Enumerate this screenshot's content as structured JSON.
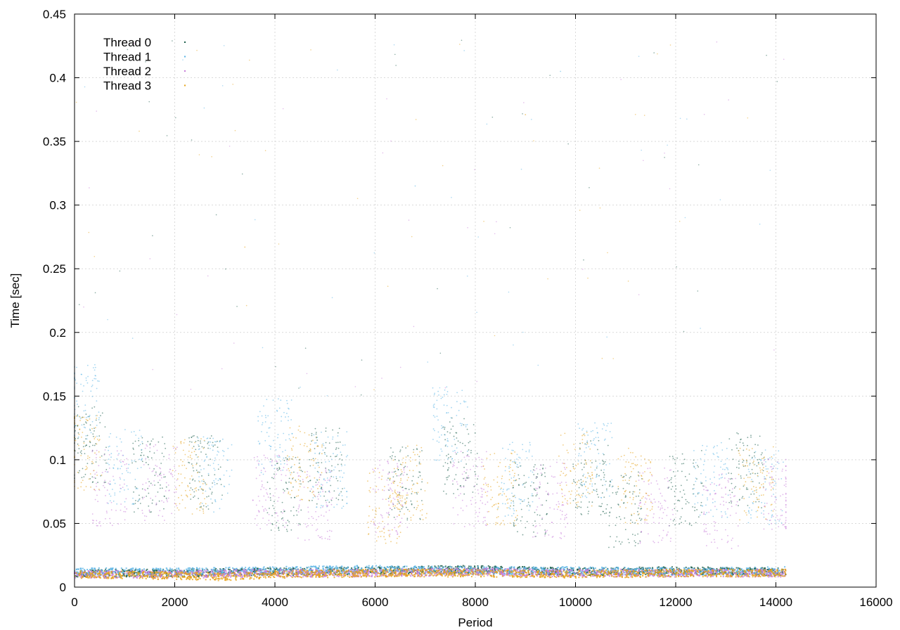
{
  "chart_data": {
    "type": "scatter",
    "title": "",
    "xlabel": "Period",
    "ylabel": "Time [sec]",
    "xlim": [
      0,
      16000
    ],
    "ylim": [
      0,
      0.45
    ],
    "x_ticks": [
      "0",
      "2000",
      "4000",
      "6000",
      "8000",
      "10000",
      "12000",
      "14000",
      "16000"
    ],
    "y_ticks": [
      "0",
      "0.05",
      "0.1",
      "0.15",
      "0.2",
      "0.25",
      "0.3",
      "0.35",
      "0.4",
      "0.45"
    ],
    "grid": true,
    "legend_position": "top-left",
    "series": [
      {
        "name": "Thread 0",
        "color": "#1a5c4a",
        "baseline": [
          [
            0,
            0.011
          ],
          [
            2000,
            0.011
          ],
          [
            4000,
            0.012
          ],
          [
            6000,
            0.013
          ],
          [
            8000,
            0.014
          ],
          [
            10000,
            0.012
          ],
          [
            12000,
            0.013
          ],
          [
            14200,
            0.012
          ]
        ],
        "points": [
          [
            300,
            0.112
          ],
          [
            1500,
            0.088
          ],
          [
            2600,
            0.091
          ],
          [
            4200,
            0.072
          ],
          [
            5000,
            0.095
          ],
          [
            6600,
            0.081
          ],
          [
            7700,
            0.103
          ],
          [
            9100,
            0.069
          ],
          [
            10300,
            0.085
          ],
          [
            12200,
            0.078
          ],
          [
            13400,
            0.092
          ],
          [
            11000,
            0.061
          ]
        ]
      },
      {
        "name": "Thread 1",
        "color": "#5ab4e5",
        "baseline": [
          [
            0,
            0.012
          ],
          [
            2000,
            0.012
          ],
          [
            4000,
            0.013
          ],
          [
            6000,
            0.014
          ],
          [
            8000,
            0.013
          ],
          [
            10000,
            0.013
          ],
          [
            12000,
            0.012
          ],
          [
            14200,
            0.013
          ]
        ],
        "points": [
          [
            150,
            0.145
          ],
          [
            1000,
            0.095
          ],
          [
            2800,
            0.088
          ],
          [
            4000,
            0.118
          ],
          [
            5100,
            0.092
          ],
          [
            7500,
            0.128
          ],
          [
            8800,
            0.085
          ],
          [
            10400,
            0.099
          ],
          [
            12700,
            0.084
          ],
          [
            13800,
            0.079
          ],
          [
            9700,
            0.405
          ],
          [
            6800,
            0.315
          ]
        ]
      },
      {
        "name": "Thread 2",
        "color": "#c77cd8",
        "baseline": [
          [
            0,
            0.01
          ],
          [
            2000,
            0.01
          ],
          [
            4000,
            0.011
          ],
          [
            6000,
            0.011
          ],
          [
            8000,
            0.012
          ],
          [
            10000,
            0.011
          ],
          [
            12000,
            0.011
          ],
          [
            14200,
            0.011
          ]
        ],
        "points": [
          [
            700,
            0.078
          ],
          [
            1700,
            0.082
          ],
          [
            3900,
            0.074
          ],
          [
            4800,
            0.066
          ],
          [
            6300,
            0.071
          ],
          [
            7900,
            0.077
          ],
          [
            9500,
            0.068
          ],
          [
            11600,
            0.064
          ],
          [
            12900,
            0.059
          ],
          [
            14100,
            0.071
          ]
        ]
      },
      {
        "name": "Thread 3",
        "color": "#e6a31a",
        "baseline": [
          [
            0,
            0.01
          ],
          [
            2000,
            0.009
          ],
          [
            3000,
            0.008
          ],
          [
            4000,
            0.01
          ],
          [
            6000,
            0.011
          ],
          [
            8000,
            0.011
          ],
          [
            10000,
            0.01
          ],
          [
            12000,
            0.011
          ],
          [
            14200,
            0.011
          ]
        ],
        "points": [
          [
            200,
            0.105
          ],
          [
            2300,
            0.087
          ],
          [
            4600,
            0.097
          ],
          [
            6200,
            0.064
          ],
          [
            6700,
            0.082
          ],
          [
            8500,
            0.077
          ],
          [
            10000,
            0.092
          ],
          [
            11200,
            0.079
          ],
          [
            13600,
            0.081
          ],
          [
            9000,
            0.371
          ],
          [
            3400,
            0.267
          ]
        ]
      }
    ]
  }
}
